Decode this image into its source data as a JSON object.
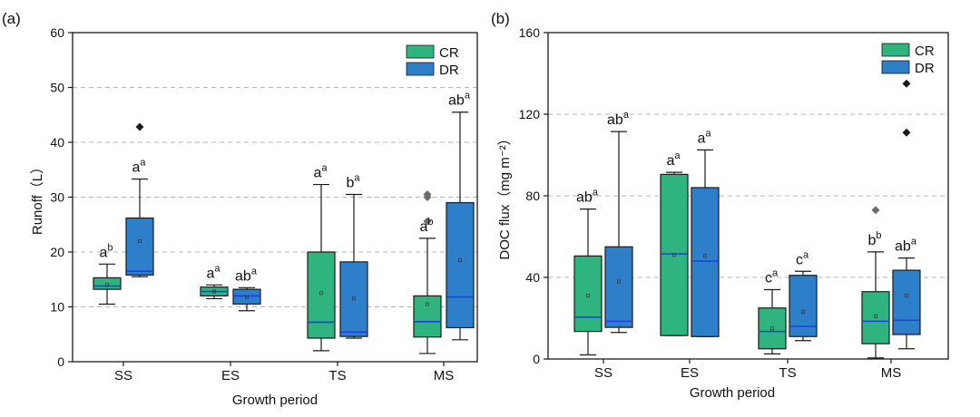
{
  "colors": {
    "cr": "#2fb47f",
    "dr": "#2e7fc9",
    "median": "#1f3fe6",
    "outlier": "#1a1a1a",
    "outlier_grey": "#6b6b6b",
    "grid": "#b5b5b5",
    "axis": "#1a1a1a"
  },
  "chart_data": [
    {
      "panel_label": "(a)",
      "type": "box",
      "ylabel": "Runoff（L）",
      "xlabel": "Growth period",
      "ylim": [
        0,
        60
      ],
      "yticks": [
        "0",
        "10",
        "20",
        "30",
        "40",
        "50",
        "60"
      ],
      "ytick_values": [
        0,
        10,
        20,
        30,
        40,
        50,
        60
      ],
      "grid": "horizontal dashed",
      "legend_position": "top-right",
      "categories": [
        "SS",
        "ES",
        "TS",
        "MS"
      ],
      "series": [
        {
          "name": "CR",
          "boxes": [
            {
              "min": 10.5,
              "q1": 13.2,
              "median": 13.8,
              "mean": 14.0,
              "q3": 15.3,
              "max": 17.8,
              "outliers": [],
              "label_base": "a",
              "label_sup": "b"
            },
            {
              "min": 11.5,
              "q1": 12.0,
              "median": 12.8,
              "mean": 12.8,
              "q3": 13.6,
              "max": 14.0,
              "outliers": [],
              "label_base": "a",
              "label_sup": "a"
            },
            {
              "min": 2.0,
              "q1": 4.3,
              "median": 7.2,
              "mean": 12.5,
              "q3": 20.0,
              "max": 32.3,
              "outliers": [],
              "label_base": "a",
              "label_sup": "a"
            },
            {
              "min": 1.5,
              "q1": 4.5,
              "median": 7.3,
              "mean": 10.5,
              "q3": 12.0,
              "max": 22.5,
              "outliers": [
                25.6,
                30.0,
                30.5
              ],
              "label_base": "a",
              "label_sup": "b"
            }
          ]
        },
        {
          "name": "DR",
          "boxes": [
            {
              "min": 15.5,
              "q1": 15.8,
              "median": 16.5,
              "mean": 22.0,
              "q3": 26.2,
              "max": 33.3,
              "outliers": [
                42.8
              ],
              "label_base": "a",
              "label_sup": "a"
            },
            {
              "min": 9.3,
              "q1": 10.5,
              "median": 12.0,
              "mean": 11.8,
              "q3": 13.2,
              "max": 13.5,
              "outliers": [],
              "label_base": "ab",
              "label_sup": "a"
            },
            {
              "min": 4.3,
              "q1": 4.6,
              "median": 5.4,
              "mean": 11.5,
              "q3": 18.2,
              "max": 30.5,
              "outliers": [],
              "label_base": "b",
              "label_sup": "a"
            },
            {
              "min": 4.0,
              "q1": 6.2,
              "median": 11.8,
              "mean": 18.5,
              "q3": 29.0,
              "max": 45.5,
              "outliers": [],
              "label_base": "ab",
              "label_sup": "a"
            }
          ]
        }
      ]
    },
    {
      "panel_label": "(b)",
      "type": "box",
      "ylabel": "DOC flux（mg m⁻²）",
      "xlabel": "Growth period",
      "ylim": [
        0,
        160
      ],
      "yticks": [
        "0",
        "40",
        "80",
        "120",
        "160"
      ],
      "ytick_values": [
        0,
        40,
        80,
        120,
        160
      ],
      "grid": "horizontal dashed",
      "legend_position": "top-right",
      "categories": [
        "SS",
        "ES",
        "TS",
        "MS"
      ],
      "series": [
        {
          "name": "CR",
          "boxes": [
            {
              "min": 2.0,
              "q1": 13.5,
              "median": 20.5,
              "mean": 31.0,
              "q3": 50.5,
              "max": 73.5,
              "outliers": [],
              "label_base": "ab",
              "label_sup": "a"
            },
            {
              "min": 11.5,
              "q1": 11.5,
              "median": 51.5,
              "mean": 51.0,
              "q3": 90.5,
              "max": 91.5,
              "outliers": [],
              "label_base": "a",
              "label_sup": "a"
            },
            {
              "min": 2.5,
              "q1": 5.0,
              "median": 13.5,
              "mean": 15.0,
              "q3": 25.0,
              "max": 34.0,
              "outliers": [],
              "label_base": "c",
              "label_sup": "a"
            },
            {
              "min": 0.5,
              "q1": 7.5,
              "median": 18.5,
              "mean": 21.0,
              "q3": 33.0,
              "max": 52.5,
              "outliers": [
                73.0
              ],
              "label_base": "b",
              "label_sup": "b"
            }
          ]
        },
        {
          "name": "DR",
          "boxes": [
            {
              "min": 13.0,
              "q1": 15.5,
              "median": 18.5,
              "mean": 38.0,
              "q3": 55.0,
              "max": 111.5,
              "outliers": [],
              "label_base": "ab",
              "label_sup": "a"
            },
            {
              "min": 11.0,
              "q1": 11.0,
              "median": 48.0,
              "mean": 50.5,
              "q3": 84.0,
              "max": 102.5,
              "outliers": [],
              "label_base": "a",
              "label_sup": "a"
            },
            {
              "min": 9.0,
              "q1": 11.0,
              "median": 16.0,
              "mean": 23.0,
              "q3": 41.0,
              "max": 43.0,
              "outliers": [],
              "label_base": "c",
              "label_sup": "a"
            },
            {
              "min": 5.0,
              "q1": 12.0,
              "median": 19.0,
              "mean": 31.0,
              "q3": 43.5,
              "max": 49.5,
              "outliers": [
                111.0,
                135.0
              ],
              "label_base": "ab",
              "label_sup": "a"
            }
          ]
        }
      ]
    }
  ]
}
